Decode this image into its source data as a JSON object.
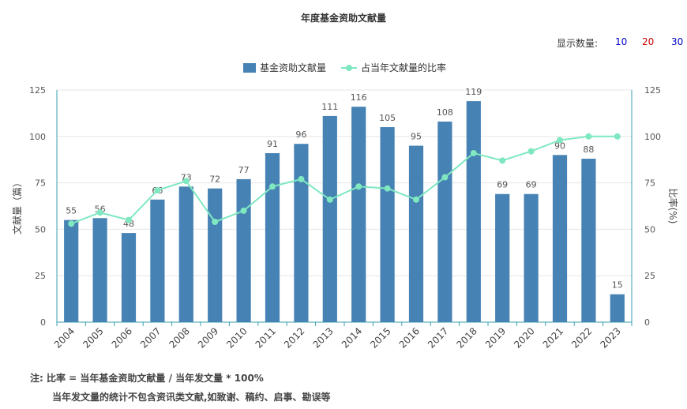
{
  "chart_data": {
    "type": "bar",
    "title": "年度基金资助文献量",
    "categories": [
      "2004",
      "2005",
      "2006",
      "2007",
      "2008",
      "2009",
      "2010",
      "2011",
      "2012",
      "2013",
      "2014",
      "2015",
      "2016",
      "2017",
      "2018",
      "2019",
      "2020",
      "2021",
      "2022",
      "2023"
    ],
    "series": [
      {
        "name": "基金资助文献量",
        "type": "bar",
        "axis": "left",
        "color": "#4682b4",
        "values": [
          55,
          56,
          48,
          66,
          73,
          72,
          77,
          91,
          96,
          111,
          116,
          105,
          95,
          108,
          119,
          69,
          69,
          90,
          88,
          15
        ]
      },
      {
        "name": "占当年文献量的比率",
        "type": "line",
        "axis": "right",
        "color": "#7fe8c0",
        "values": [
          53,
          59,
          55,
          71,
          76,
          54,
          60,
          73,
          77,
          66,
          73,
          72,
          66,
          78,
          91,
          87,
          92,
          98,
          100,
          100
        ]
      }
    ],
    "ylabel": "文献量（篇）",
    "y2label": "比率(%)",
    "ylim": [
      0,
      125
    ],
    "y2lim": [
      0,
      125
    ],
    "yticks": [
      "0",
      "25",
      "50",
      "75",
      "100",
      "125"
    ],
    "y2ticks": [
      "0",
      "25",
      "50",
      "75",
      "100",
      "125"
    ],
    "grid": true,
    "legend": "top-center"
  },
  "controls": {
    "label": "显示数量:",
    "options": [
      {
        "text": "10",
        "color": "#0000cc"
      },
      {
        "text": "20",
        "color": "#cc0000"
      },
      {
        "text": "30",
        "color": "#0000cc"
      }
    ]
  },
  "notes": {
    "line1": "注:   比率 = 当年基金资助文献量 / 当年发文量 * 100%",
    "line2": "当年发文量的统计不包含资讯类文献,如致谢、稿约、启事、勘误等"
  }
}
